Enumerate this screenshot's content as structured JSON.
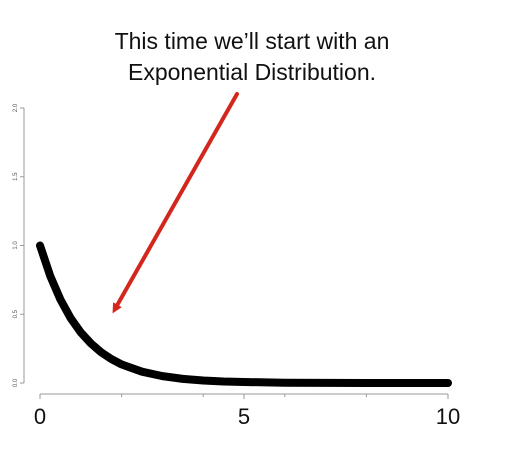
{
  "annotation": {
    "line1": "This time we’ll start with an",
    "line2": "Exponential Distribution."
  },
  "colors": {
    "curve": "#000000",
    "arrow": "#d3271d",
    "axis": "#9a9a9a"
  },
  "chart_data": {
    "type": "line",
    "x": [
      0,
      0.25,
      0.5,
      0.75,
      1,
      1.25,
      1.5,
      1.75,
      2,
      2.5,
      3,
      3.5,
      4,
      4.5,
      5,
      6,
      7,
      8,
      9,
      10
    ],
    "series": [
      {
        "values": [
          1.0,
          0.779,
          0.607,
          0.472,
          0.368,
          0.287,
          0.223,
          0.174,
          0.135,
          0.082,
          0.05,
          0.03,
          0.018,
          0.011,
          0.007,
          0.002,
          0.001,
          0.0,
          0.0,
          0.0
        ]
      }
    ],
    "xlim": [
      0,
      10
    ],
    "ylim": [
      0,
      2
    ],
    "x_ticks": [
      0,
      5,
      10
    ],
    "x_minor_ticks": [
      2,
      4,
      6,
      8
    ],
    "y_ticks": [
      0,
      0.5,
      1,
      1.5,
      2
    ],
    "x_tick_labels": [
      "0",
      "5",
      "10"
    ],
    "y_tick_labels": [
      "0.0",
      "0.5",
      "1.0",
      "1.5",
      "2.0"
    ],
    "grid": false,
    "annotations": [
      {
        "type": "arrow",
        "from_text": "annotation",
        "points_to": "curve"
      }
    ]
  }
}
